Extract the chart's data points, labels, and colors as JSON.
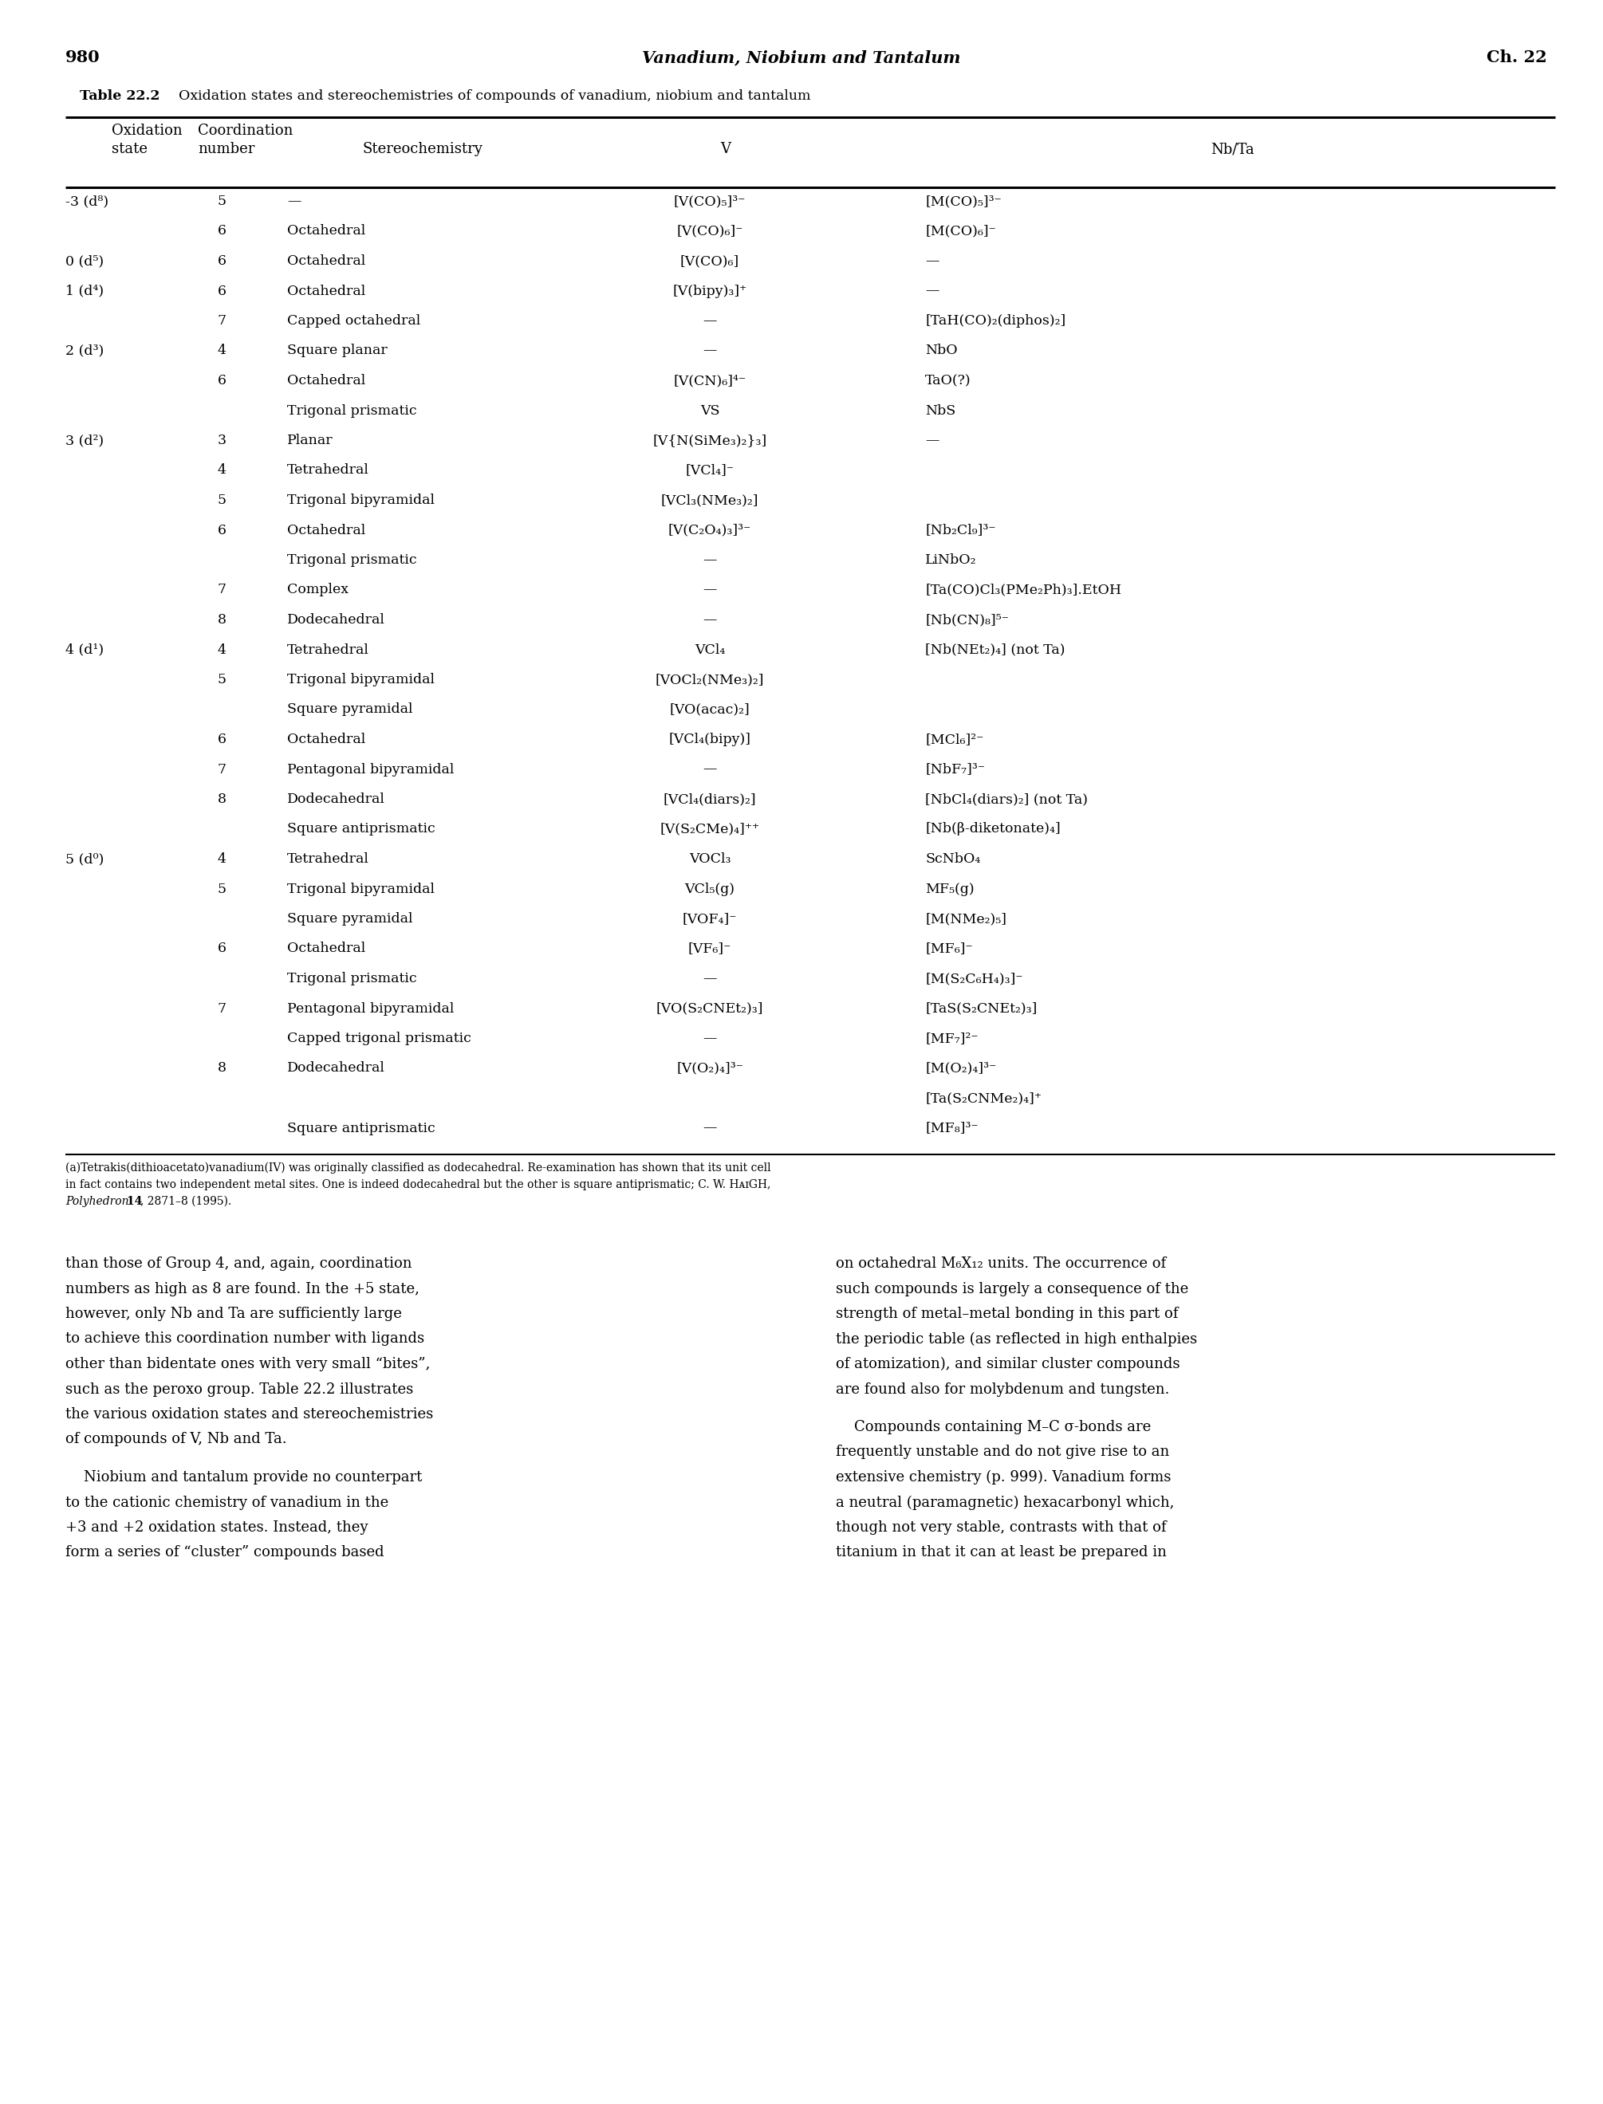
{
  "page_number": "980",
  "page_title": "Vanadium, Niobium and Tantalum",
  "chapter": "Ch. 22",
  "table_label": "Table 22.2",
  "table_subtitle": "Oxidation states and stereochemistries of compounds of vanadium, niobium and tantalum",
  "footnote_lines": [
    "(a)Tetrakis(dithioacetato)vanadium(IV) was originally classified as dodecahedral. Re-examination has shown that its unit cell",
    "in fact contains two independent metal sites. One is indeed dodecahedral but the other is square antiprismatic; C. W. HᴀɪGH,",
    "Polyhedron 14, 2871–8 (1995)."
  ],
  "body_left": [
    "than those of Group 4, and, again, coordination",
    "numbers as high as 8 are found. In the +5 state,",
    "however, only Nb and Ta are sufficiently large",
    "to achieve this coordination number with ligands",
    "other than bidentate ones with very small “bites”,",
    "such as the peroxo group. Table 22.2 illustrates",
    "the various oxidation states and stereochemistries",
    "of compounds of V, Nb and Ta.",
    "",
    "    Niobium and tantalum provide no counterpart",
    "to the cationic chemistry of vanadium in the",
    "+3 and +2 oxidation states. Instead, they",
    "form a series of “cluster” compounds based"
  ],
  "body_right": [
    "on octahedral M₆X₁₂ units. The occurrence of",
    "such compounds is largely a consequence of the",
    "strength of metal–metal bonding in this part of",
    "the periodic table (as reflected in high enthalpies",
    "of atomization), and similar cluster compounds",
    "are found also for molybdenum and tungsten.",
    "",
    "    Compounds containing M–C σ-bonds are",
    "frequently unstable and do not give rise to an",
    "extensive chemistry (p. 999). Vanadium forms",
    "a neutral (paramagnetic) hexacarbonyl which,",
    "though not very stable, contrasts with that of",
    "titanium in that it can at least be prepared in"
  ],
  "rows": [
    [
      "-3 (d⁸)",
      "5",
      "—",
      "[V(CO)₅]³⁻",
      "[M(CO)₅]³⁻"
    ],
    [
      "",
      "6",
      "Octahedral",
      "[V(CO)₆]⁻",
      "[M(CO)₆]⁻"
    ],
    [
      "0 (d⁵)",
      "6",
      "Octahedral",
      "[V(CO)₆]",
      "—"
    ],
    [
      "1 (d⁴)",
      "6",
      "Octahedral",
      "[V(bipy)₃]⁺",
      "—"
    ],
    [
      "",
      "7",
      "Capped octahedral",
      "—",
      "[TaH(CO)₂(diphos)₂]"
    ],
    [
      "2 (d³)",
      "4",
      "Square planar",
      "—",
      "NbO"
    ],
    [
      "",
      "6",
      "Octahedral",
      "[V(CN)₆]⁴⁻",
      "TaO(?)"
    ],
    [
      "",
      "",
      "Trigonal prismatic",
      "VS",
      "NbS"
    ],
    [
      "3 (d²)",
      "3",
      "Planar",
      "[V{N(SiMe₃)₂}₃]",
      "—"
    ],
    [
      "",
      "4",
      "Tetrahedral",
      "[VCl₄]⁻",
      ""
    ],
    [
      "",
      "5",
      "Trigonal bipyramidal",
      "[VCl₃(NMe₃)₂]",
      ""
    ],
    [
      "",
      "6",
      "Octahedral",
      "[V(C₂O₄)₃]³⁻",
      "[Nb₂Cl₉]³⁻"
    ],
    [
      "",
      "",
      "Trigonal prismatic",
      "—",
      "LiNbO₂"
    ],
    [
      "",
      "7",
      "Complex",
      "—",
      "[Ta(CO)Cl₃(PMe₂Ph)₃].EtOH"
    ],
    [
      "",
      "8",
      "Dodecahedral",
      "—",
      "[Nb(CN)₈]⁵⁻"
    ],
    [
      "4 (d¹)",
      "4",
      "Tetrahedral",
      "VCl₄",
      "[Nb(NEt₂)₄] (not Ta)"
    ],
    [
      "",
      "5",
      "Trigonal bipyramidal",
      "[VOCl₂(NMe₃)₂]",
      ""
    ],
    [
      "",
      "",
      "Square pyramidal",
      "[VO(acac)₂]",
      ""
    ],
    [
      "",
      "6",
      "Octahedral",
      "[VCl₄(bipy)]",
      "[MCl₆]²⁻"
    ],
    [
      "",
      "7",
      "Pentagonal bipyramidal",
      "—",
      "[NbF₇]³⁻"
    ],
    [
      "",
      "8",
      "Dodecahedral",
      "[VCl₄(diars)₂]",
      "[NbCl₄(diars)₂] (not Ta)"
    ],
    [
      "",
      "",
      "Square antiprismatic",
      "[V(S₂CMe)₄]⁺⁺",
      "[Nb(β-diketonate)₄]"
    ],
    [
      "5 (d⁰)",
      "4",
      "Tetrahedral",
      "VOCl₃",
      "ScNbO₄"
    ],
    [
      "",
      "5",
      "Trigonal bipyramidal",
      "VCl₅(g)",
      "MF₅(g)"
    ],
    [
      "",
      "",
      "Square pyramidal",
      "[VOF₄]⁻",
      "[M(NMe₂)₅]"
    ],
    [
      "",
      "6",
      "Octahedral",
      "[VF₆]⁻",
      "[MF₆]⁻"
    ],
    [
      "",
      "",
      "Trigonal prismatic",
      "—",
      "[M(S₂C₆H₄)₃]⁻"
    ],
    [
      "",
      "7",
      "Pentagonal bipyramidal",
      "[VO(S₂CNEt₂)₃]",
      "[TaS(S₂CNEt₂)₃]"
    ],
    [
      "",
      "",
      "Capped trigonal prismatic",
      "—",
      "[MF₇]²⁻"
    ],
    [
      "",
      "8",
      "Dodecahedral",
      "[V(O₂)₄]³⁻",
      "[M(O₂)₄]³⁻"
    ],
    [
      "",
      "",
      "",
      "",
      "[Ta(S₂CNMe₂)₄]⁺"
    ],
    [
      "",
      "",
      "Square antiprismatic",
      "—",
      "[MF₈]³⁻"
    ]
  ]
}
